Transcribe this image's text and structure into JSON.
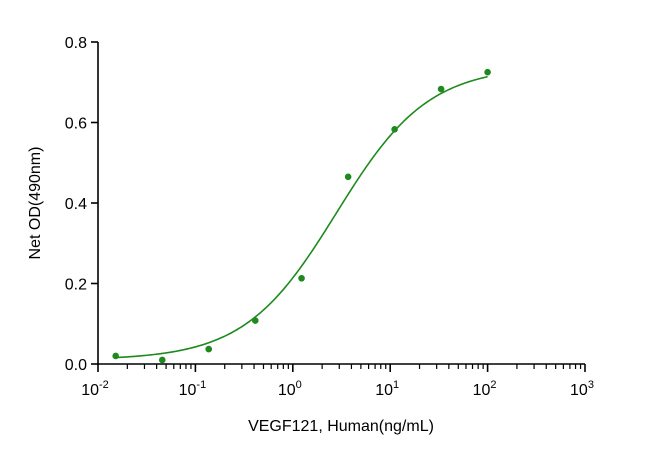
{
  "chart_data": {
    "type": "scatter",
    "xlabel": "VEGF121, Human(ng/mL)",
    "ylabel": "Net OD(490nm)",
    "x_scale": "log",
    "xlim": [
      0.01,
      1000
    ],
    "ylim": [
      0.0,
      0.8
    ],
    "x_ticks": [
      {
        "base": "10",
        "exp": "-2"
      },
      {
        "base": "10",
        "exp": "-1"
      },
      {
        "base": "10",
        "exp": "0"
      },
      {
        "base": "10",
        "exp": "1"
      },
      {
        "base": "10",
        "exp": "2"
      },
      {
        "base": "10",
        "exp": "3"
      }
    ],
    "y_ticks": [
      "0.0",
      "0.2",
      "0.4",
      "0.6",
      "0.8"
    ],
    "grid": false,
    "colors": {
      "series": "#1e8a1e",
      "axis": "#000000"
    },
    "series": [
      {
        "type": "scatter",
        "x": [
          0.0152,
          0.0457,
          0.137,
          0.412,
          1.23,
          3.7,
          11.1,
          33.3,
          100
        ],
        "y": [
          0.02,
          0.01,
          0.037,
          0.108,
          0.213,
          0.465,
          0.583,
          0.683,
          0.725
        ]
      },
      {
        "type": "fit-curve",
        "model": "4PL",
        "bottom": 0.01,
        "top": 0.74,
        "ec50": 2.8,
        "hill": 0.92
      }
    ]
  }
}
